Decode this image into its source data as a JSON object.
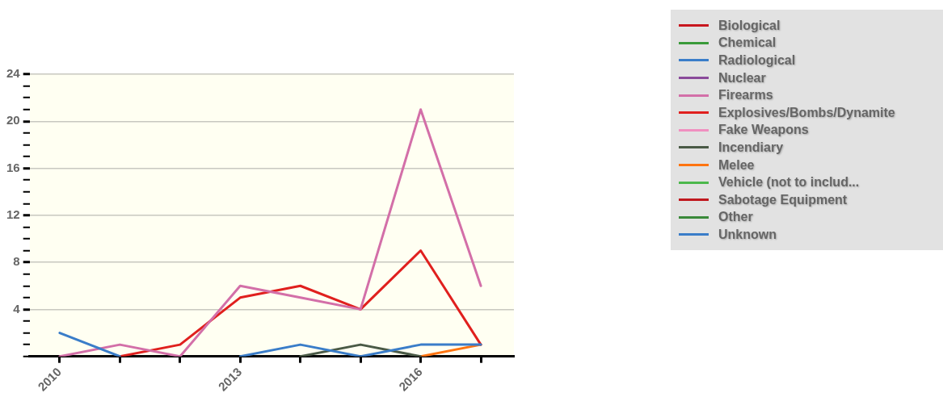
{
  "chart_data": {
    "type": "line",
    "x": [
      2010,
      2011,
      2012,
      2013,
      2014,
      2015,
      2016,
      2017
    ],
    "xlim": [
      2009.5,
      2017.55
    ],
    "xticks": [
      2010,
      {
        "value": 2011,
        "label": null
      },
      {
        "value": 2012,
        "label": null
      },
      2013,
      {
        "value": 2014,
        "label": null
      },
      {
        "value": 2015,
        "label": null
      },
      2016,
      {
        "value": 2017,
        "label": null
      }
    ],
    "ylim": [
      0,
      24
    ],
    "yticks": [
      {
        "value": 0,
        "label": null
      },
      {
        "value": 1,
        "label": null
      },
      {
        "value": 2,
        "label": null
      },
      {
        "value": 3,
        "label": null
      },
      4,
      {
        "value": 5,
        "label": null
      },
      {
        "value": 6,
        "label": null
      },
      {
        "value": 7,
        "label": null
      },
      8,
      {
        "value": 9,
        "label": null
      },
      {
        "value": 10,
        "label": null
      },
      {
        "value": 11,
        "label": null
      },
      12,
      {
        "value": 13,
        "label": null
      },
      {
        "value": 14,
        "label": null
      },
      {
        "value": 15,
        "label": null
      },
      16,
      {
        "value": 17,
        "label": null
      },
      {
        "value": 18,
        "label": null
      },
      {
        "value": 19,
        "label": null
      },
      20,
      {
        "value": 21,
        "label": null
      },
      {
        "value": 22,
        "label": null
      },
      {
        "value": 23,
        "label": null
      },
      24
    ],
    "grid": "y",
    "legend": "right",
    "marker": "none",
    "line_style": "solid",
    "series": [
      {
        "name": "Biological",
        "color": "#c8171e",
        "values": [
          null,
          null,
          null,
          null,
          null,
          null,
          null,
          null
        ]
      },
      {
        "name": "Chemical",
        "color": "#3a9a3a",
        "values": [
          null,
          null,
          null,
          null,
          null,
          null,
          null,
          null
        ]
      },
      {
        "name": "Radiological",
        "color": "#3a7dc9",
        "values": [
          2,
          0,
          null,
          0,
          1,
          0,
          1,
          1
        ]
      },
      {
        "name": "Nuclear",
        "color": "#8a4a9a",
        "values": [
          null,
          null,
          null,
          null,
          null,
          null,
          null,
          null
        ]
      },
      {
        "name": "Firearms",
        "color": "#d36fa8",
        "values": [
          0,
          1,
          0,
          6,
          5,
          4,
          21,
          6
        ]
      },
      {
        "name": "Explosives/Bombs/Dynamite",
        "color": "#e0201e",
        "values": [
          null,
          0,
          1,
          5,
          6,
          4,
          9,
          1
        ]
      },
      {
        "name": "Fake Weapons",
        "color": "#f090c0",
        "values": [
          null,
          null,
          null,
          null,
          null,
          null,
          null,
          null
        ]
      },
      {
        "name": "Incendiary",
        "color": "#4a5a46",
        "values": [
          null,
          null,
          null,
          null,
          0,
          1,
          0,
          null
        ]
      },
      {
        "name": "Melee",
        "color": "#ff7410",
        "values": [
          null,
          null,
          null,
          null,
          null,
          null,
          0,
          1
        ]
      },
      {
        "name": "Vehicle (not to includ...",
        "color": "#4cb84c",
        "values": [
          null,
          null,
          null,
          null,
          null,
          null,
          null,
          null
        ]
      },
      {
        "name": "Sabotage Equipment",
        "color": "#c0181e",
        "values": [
          null,
          null,
          null,
          null,
          null,
          null,
          null,
          null
        ]
      },
      {
        "name": "Other",
        "color": "#3a8a3a",
        "values": [
          null,
          null,
          null,
          null,
          null,
          null,
          null,
          null
        ]
      },
      {
        "name": "Unknown",
        "color": "#3a7dc9",
        "values": [
          null,
          null,
          null,
          null,
          null,
          null,
          null,
          null
        ]
      }
    ]
  }
}
